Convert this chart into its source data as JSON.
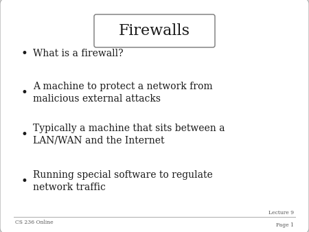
{
  "title": "Firewalls",
  "background_color": "#e8e8e8",
  "slide_bg": "#ffffff",
  "bullet_points": [
    "What is a firewall?",
    "A machine to protect a network from\nmalicious external attacks",
    "Typically a machine that sits between a\nLAN/WAN and the Internet",
    "Running special software to regulate\nnetwork traffic"
  ],
  "footer_left": "CS 236 Online",
  "footer_right_line1": "Lecture 9",
  "footer_right_line2": "Page 1",
  "text_color": "#1a1a1a",
  "footer_color": "#555555",
  "title_fontsize": 16,
  "bullet_fontsize": 10,
  "footer_fontsize": 5.5
}
